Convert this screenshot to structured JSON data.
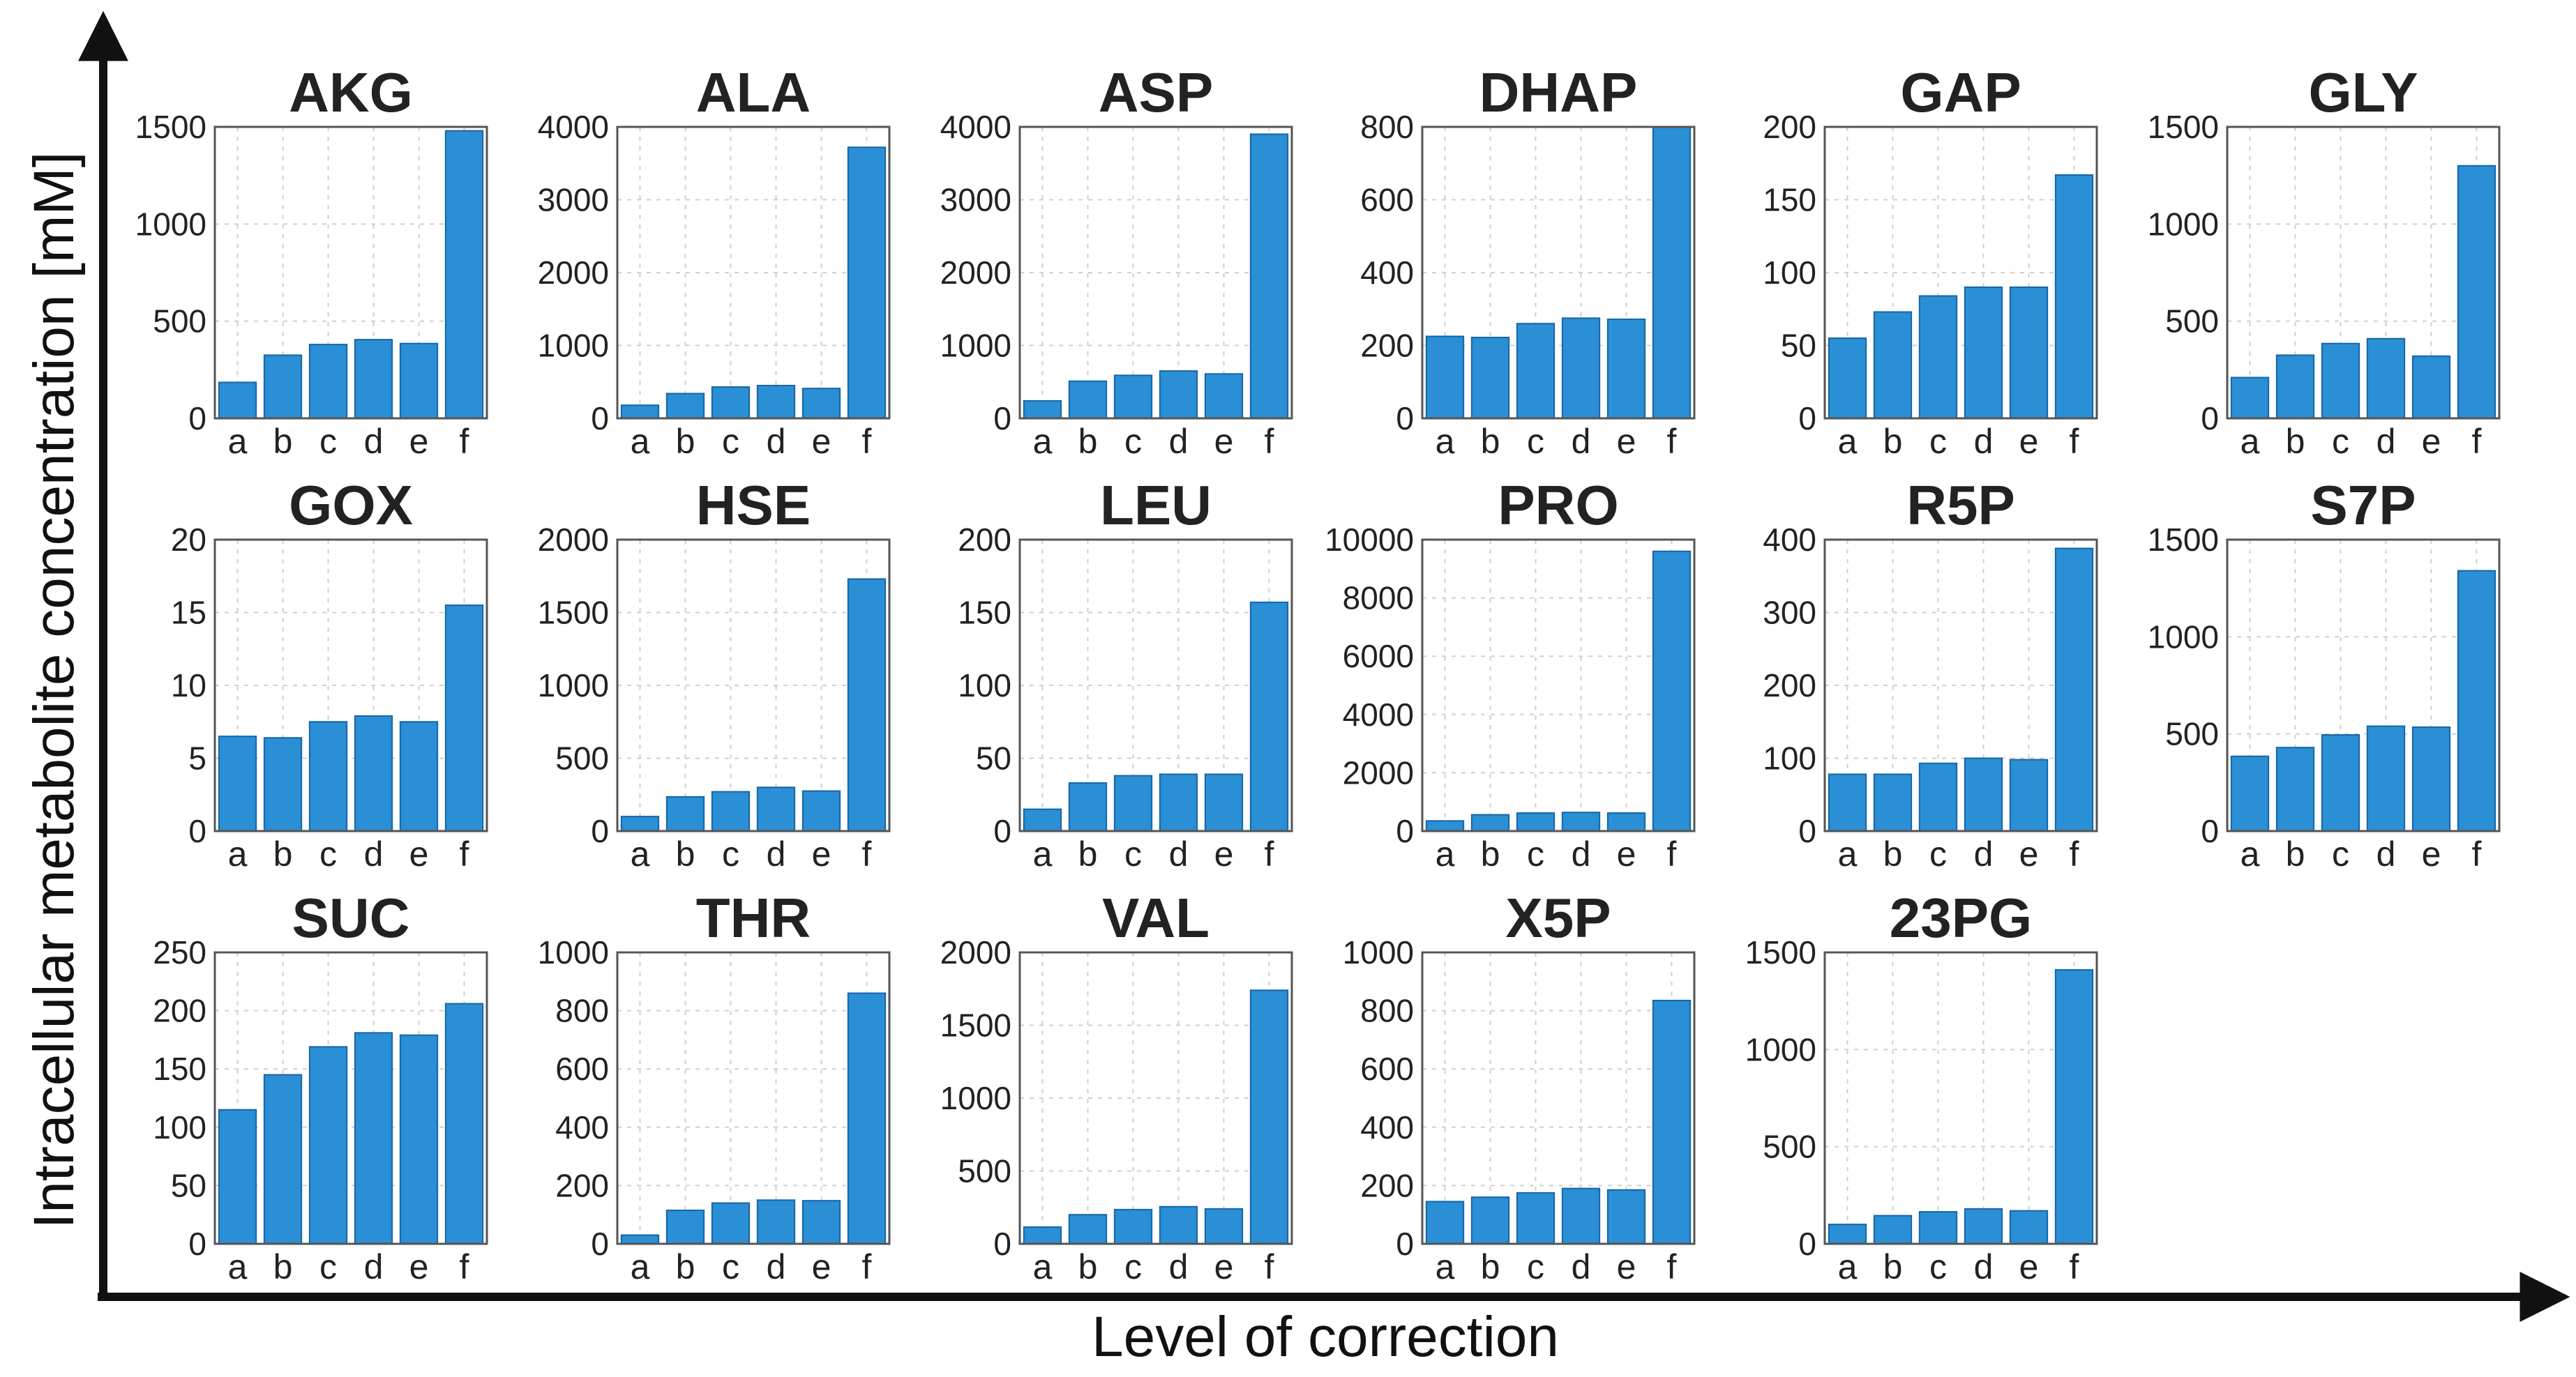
{
  "figure": {
    "ylabel": "Intracellular metabolite concentration [mM]",
    "xlabel": "Level of correction",
    "bar_color": "#2a8fd4"
  },
  "chart_data": [
    {
      "type": "bar",
      "title": "AKG",
      "categories": [
        "a",
        "b",
        "c",
        "d",
        "e",
        "f"
      ],
      "values": [
        185,
        325,
        380,
        405,
        385,
        1480
      ],
      "ylim": [
        0,
        1500
      ],
      "yticks": [
        0,
        500,
        1000,
        1500
      ]
    },
    {
      "type": "bar",
      "title": "ALA",
      "categories": [
        "a",
        "b",
        "c",
        "d",
        "e",
        "f"
      ],
      "values": [
        180,
        340,
        430,
        450,
        410,
        3720
      ],
      "ylim": [
        0,
        4000
      ],
      "yticks": [
        0,
        1000,
        2000,
        3000,
        4000
      ]
    },
    {
      "type": "bar",
      "title": "ASP",
      "categories": [
        "a",
        "b",
        "c",
        "d",
        "e",
        "f"
      ],
      "values": [
        240,
        510,
        590,
        650,
        610,
        3900
      ],
      "ylim": [
        0,
        4000
      ],
      "yticks": [
        0,
        1000,
        2000,
        3000,
        4000
      ]
    },
    {
      "type": "bar",
      "title": "DHAP",
      "categories": [
        "a",
        "b",
        "c",
        "d",
        "e",
        "f"
      ],
      "values": [
        225,
        222,
        260,
        275,
        272,
        800
      ],
      "ylim": [
        0,
        800
      ],
      "yticks": [
        0,
        200,
        400,
        600,
        800
      ]
    },
    {
      "type": "bar",
      "title": "GAP",
      "categories": [
        "a",
        "b",
        "c",
        "d",
        "e",
        "f"
      ],
      "values": [
        55,
        73,
        84,
        90,
        90,
        167
      ],
      "ylim": [
        0,
        200
      ],
      "yticks": [
        0,
        50,
        100,
        150,
        200
      ]
    },
    {
      "type": "bar",
      "title": "GLY",
      "categories": [
        "a",
        "b",
        "c",
        "d",
        "e",
        "f"
      ],
      "values": [
        210,
        325,
        385,
        410,
        320,
        1300
      ],
      "ylim": [
        0,
        1500
      ],
      "yticks": [
        0,
        500,
        1000,
        1500
      ]
    },
    {
      "type": "bar",
      "title": "GOX",
      "categories": [
        "a",
        "b",
        "c",
        "d",
        "e",
        "f"
      ],
      "values": [
        6.5,
        6.4,
        7.5,
        7.9,
        7.5,
        15.5
      ],
      "ylim": [
        0,
        20
      ],
      "yticks": [
        0,
        5,
        10,
        15,
        20
      ]
    },
    {
      "type": "bar",
      "title": "HSE",
      "categories": [
        "a",
        "b",
        "c",
        "d",
        "e",
        "f"
      ],
      "values": [
        100,
        235,
        270,
        300,
        275,
        1730
      ],
      "ylim": [
        0,
        2000
      ],
      "yticks": [
        0,
        500,
        1000,
        1500,
        2000
      ]
    },
    {
      "type": "bar",
      "title": "LEU",
      "categories": [
        "a",
        "b",
        "c",
        "d",
        "e",
        "f"
      ],
      "values": [
        15,
        33,
        38,
        39,
        39,
        157
      ],
      "ylim": [
        0,
        200
      ],
      "yticks": [
        0,
        50,
        100,
        150,
        200
      ]
    },
    {
      "type": "bar",
      "title": "PRO",
      "categories": [
        "a",
        "b",
        "c",
        "d",
        "e",
        "f"
      ],
      "values": [
        350,
        560,
        620,
        640,
        620,
        9600
      ],
      "ylim": [
        0,
        10000
      ],
      "yticks": [
        0,
        2000,
        4000,
        6000,
        8000,
        10000
      ]
    },
    {
      "type": "bar",
      "title": "R5P",
      "categories": [
        "a",
        "b",
        "c",
        "d",
        "e",
        "f"
      ],
      "values": [
        78,
        78,
        93,
        100,
        98,
        388
      ],
      "ylim": [
        0,
        400
      ],
      "yticks": [
        0,
        100,
        200,
        300,
        400
      ]
    },
    {
      "type": "bar",
      "title": "S7P",
      "categories": [
        "a",
        "b",
        "c",
        "d",
        "e",
        "f"
      ],
      "values": [
        385,
        430,
        495,
        540,
        535,
        1340
      ],
      "ylim": [
        0,
        1500
      ],
      "yticks": [
        0,
        500,
        1000,
        1500
      ]
    },
    {
      "type": "bar",
      "title": "SUC",
      "categories": [
        "a",
        "b",
        "c",
        "d",
        "e",
        "f"
      ],
      "values": [
        115,
        145,
        169,
        181,
        179,
        206
      ],
      "ylim": [
        0,
        250
      ],
      "yticks": [
        0,
        50,
        100,
        150,
        200,
        250
      ]
    },
    {
      "type": "bar",
      "title": "THR",
      "categories": [
        "a",
        "b",
        "c",
        "d",
        "e",
        "f"
      ],
      "values": [
        30,
        115,
        140,
        150,
        148,
        860
      ],
      "ylim": [
        0,
        1000
      ],
      "yticks": [
        0,
        200,
        400,
        600,
        800,
        1000
      ]
    },
    {
      "type": "bar",
      "title": "VAL",
      "categories": [
        "a",
        "b",
        "c",
        "d",
        "e",
        "f"
      ],
      "values": [
        115,
        200,
        235,
        255,
        240,
        1740
      ],
      "ylim": [
        0,
        2000
      ],
      "yticks": [
        0,
        500,
        1000,
        1500,
        2000
      ]
    },
    {
      "type": "bar",
      "title": "X5P",
      "categories": [
        "a",
        "b",
        "c",
        "d",
        "e",
        "f"
      ],
      "values": [
        145,
        160,
        175,
        190,
        185,
        835
      ],
      "ylim": [
        0,
        1000
      ],
      "yticks": [
        0,
        200,
        400,
        600,
        800,
        1000
      ]
    },
    {
      "type": "bar",
      "title": "23PG",
      "categories": [
        "a",
        "b",
        "c",
        "d",
        "e",
        "f"
      ],
      "values": [
        100,
        145,
        165,
        180,
        170,
        1410
      ],
      "ylim": [
        0,
        1500
      ],
      "yticks": [
        0,
        500,
        1000,
        1500
      ]
    }
  ]
}
